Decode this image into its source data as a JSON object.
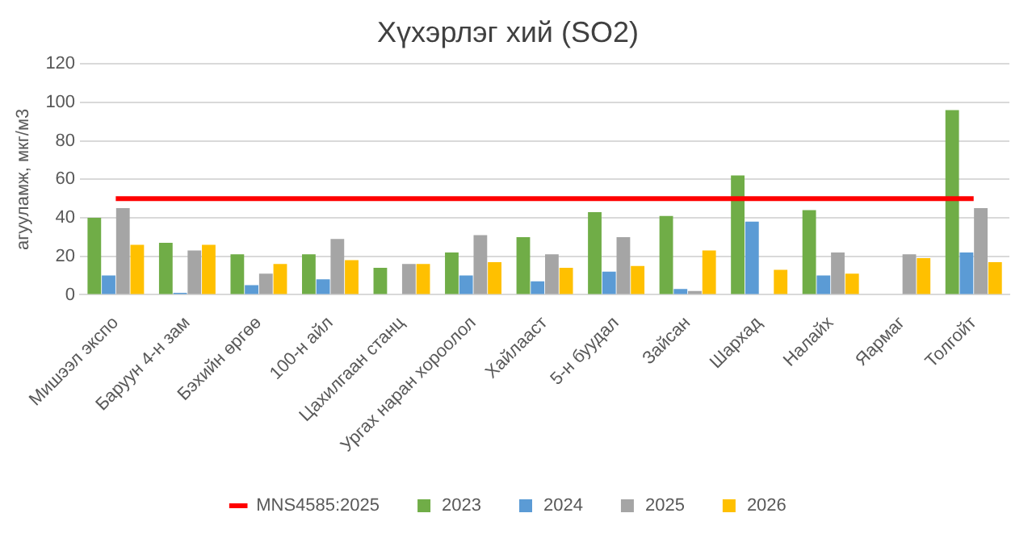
{
  "chart_data": {
    "type": "bar",
    "title": "Хүхэрлэг хий (SO2)",
    "ylabel": "агууламж, мкг/м3",
    "categories": [
      "Мишээл экспо",
      "Баруун 4-н зам",
      "Бэхийн өргөө",
      "100-н айл",
      "Цахилгаан станц",
      "Ургах наран хороолол",
      "Хайлааст",
      "5-н буудал",
      "Зайсан",
      "Шархад",
      "Налайх",
      "Яармаг",
      "Толгойт"
    ],
    "series": [
      {
        "name": "2023",
        "color": "#70ad47",
        "values": [
          40,
          27,
          21,
          21,
          14,
          22,
          30,
          43,
          41,
          62,
          44,
          null,
          96
        ]
      },
      {
        "name": "2024",
        "color": "#5b9bd5",
        "values": [
          10,
          1,
          5,
          8,
          null,
          10,
          7,
          12,
          3,
          38,
          10,
          null,
          22
        ]
      },
      {
        "name": "2025",
        "color": "#a5a5a5",
        "values": [
          45,
          23,
          11,
          29,
          16,
          31,
          21,
          30,
          2,
          null,
          22,
          21,
          45
        ]
      },
      {
        "name": "2026",
        "color": "#ffc000",
        "values": [
          26,
          26,
          16,
          18,
          16,
          17,
          14,
          15,
          23,
          13,
          11,
          19,
          17
        ]
      },
      {
        "name": "MNS4585:2025",
        "type": "line",
        "color": "#ff0000",
        "values": [
          50,
          50,
          50,
          50,
          50,
          50,
          50,
          50,
          50,
          50,
          50,
          50,
          50
        ]
      }
    ],
    "ylim": [
      0,
      120
    ],
    "yticks": [
      0,
      20,
      40,
      60,
      80,
      100,
      120
    ],
    "grid": "y",
    "legend": "bottom"
  }
}
